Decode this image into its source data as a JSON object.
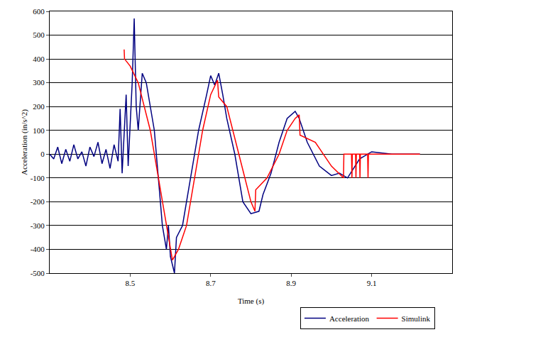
{
  "chart_data": {
    "type": "line",
    "x_label": "Time (s)",
    "y_label": "Acceleration (in/s^2)",
    "xlim": [
      8.3,
      9.3
    ],
    "xticks": [
      8.5,
      8.7,
      8.9,
      9.1
    ],
    "ylim": [
      -500,
      600
    ],
    "yticks": [
      -500,
      -400,
      -300,
      -200,
      -100,
      0,
      100,
      200,
      300,
      400,
      500,
      600
    ],
    "grid": true,
    "legend": "bottom",
    "series": [
      {
        "name": "Acceleration",
        "color": "#000080",
        "x": [
          8.3,
          8.31,
          8.32,
          8.33,
          8.34,
          8.35,
          8.36,
          8.37,
          8.38,
          8.39,
          8.4,
          8.41,
          8.42,
          8.43,
          8.44,
          8.45,
          8.46,
          8.47,
          8.475,
          8.48,
          8.49,
          8.495,
          8.505,
          8.51,
          8.515,
          8.52,
          8.53,
          8.54,
          8.56,
          8.58,
          8.59,
          8.595,
          8.6,
          8.61,
          8.615,
          8.63,
          8.65,
          8.67,
          8.69,
          8.7,
          8.71,
          8.72,
          8.73,
          8.74,
          8.76,
          8.78,
          8.8,
          8.82,
          8.83,
          8.85,
          8.87,
          8.89,
          8.91,
          8.92,
          8.94,
          8.97,
          9.0,
          9.02,
          9.04,
          9.07,
          9.1,
          9.15,
          9.22
        ],
        "values": [
          0,
          -20,
          30,
          -40,
          20,
          -30,
          40,
          -20,
          10,
          -50,
          30,
          -10,
          50,
          -40,
          20,
          -60,
          40,
          -30,
          190,
          -80,
          250,
          -50,
          300,
          570,
          200,
          100,
          340,
          300,
          100,
          -300,
          -400,
          -300,
          -430,
          -500,
          -350,
          -300,
          -100,
          100,
          250,
          330,
          290,
          340,
          250,
          150,
          0,
          -200,
          -250,
          -240,
          -170,
          -80,
          50,
          150,
          180,
          150,
          50,
          -50,
          -90,
          -80,
          -100,
          -20,
          10,
          0,
          0
        ]
      },
      {
        "name": "Simulink",
        "color": "#ff0000",
        "x": [
          8.485,
          8.486,
          8.5,
          8.52,
          8.55,
          8.57,
          8.59,
          8.605,
          8.62,
          8.64,
          8.66,
          8.68,
          8.7,
          8.717,
          8.72,
          8.74,
          8.77,
          8.8,
          8.81,
          8.812,
          8.84,
          8.87,
          8.89,
          8.91,
          8.92,
          8.922,
          8.96,
          9.0,
          9.03,
          9.031,
          9.05,
          9.051,
          9.052,
          9.06,
          9.061,
          9.062,
          9.07,
          9.071,
          9.072,
          9.09,
          9.091,
          9.092,
          9.1,
          9.22
        ],
        "values": [
          440,
          400,
          370,
          300,
          100,
          -100,
          -300,
          -445,
          -400,
          -300,
          -100,
          100,
          250,
          311,
          240,
          200,
          0,
          -200,
          -240,
          -150,
          -100,
          0,
          100,
          150,
          165,
          80,
          50,
          -50,
          -100,
          0,
          0,
          -100,
          0,
          0,
          -100,
          0,
          0,
          -100,
          0,
          0,
          -100,
          0,
          0,
          0
        ]
      }
    ]
  }
}
